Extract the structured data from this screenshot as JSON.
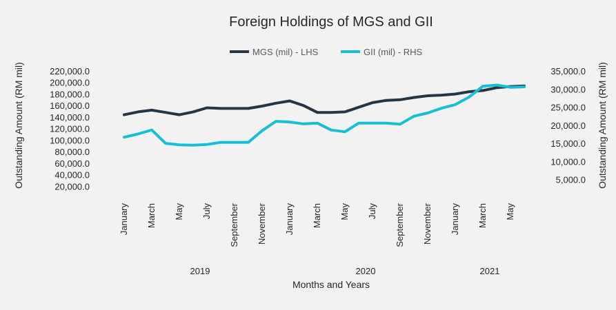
{
  "chart_data": {
    "type": "line",
    "title": "Foreign Holdings of MGS and GII",
    "xlabel": "Months and Years",
    "ylabel_left": "Outstanding Amount (RM mil)",
    "ylabel_right": "Outstanding Amount (RM mil)",
    "x_tick_labels": [
      "January",
      "March",
      "May",
      "July",
      "September",
      "November",
      "January",
      "March",
      "May",
      "July",
      "September",
      "November",
      "January",
      "March",
      "May"
    ],
    "year_labels": [
      "2019",
      "2020",
      "2021"
    ],
    "y_left_ticks": [
      "20,000.0",
      "40,000.0",
      "60,000.0",
      "80,000.0",
      "100,000.0",
      "120,000.0",
      "140,000.0",
      "160,000.0",
      "180,000.0",
      "200,000.0",
      "220,000.0"
    ],
    "y_right_ticks": [
      "5,000.0",
      "10,000.0",
      "15,000.0",
      "20,000.0",
      "25,000.0",
      "30,000.0",
      "35,000.0"
    ],
    "ylim_left": [
      0,
      220000
    ],
    "ylim_right": [
      0,
      35000
    ],
    "legend_position": "top",
    "series": [
      {
        "name": "MGS (mil) - LHS",
        "axis": "left",
        "color": "#253544",
        "values": [
          144000,
          149000,
          152000,
          148000,
          144000,
          149000,
          156000,
          155000,
          155000,
          155000,
          159000,
          164000,
          168000,
          160000,
          148000,
          148000,
          149000,
          157000,
          165000,
          169000,
          170000,
          174000,
          177000,
          178000,
          180000,
          184000,
          186000,
          191000,
          193000,
          194000
        ]
      },
      {
        "name": "GII (mil) - RHS",
        "axis": "right",
        "color": "#17BFD6",
        "values": [
          16700,
          17600,
          18700,
          15000,
          14600,
          14500,
          14700,
          15300,
          15300,
          15300,
          18500,
          21100,
          20900,
          20400,
          20600,
          18700,
          18200,
          20600,
          20600,
          20600,
          20300,
          22500,
          23400,
          24700,
          25700,
          27800,
          30800,
          31100,
          30500,
          30600
        ]
      }
    ]
  }
}
